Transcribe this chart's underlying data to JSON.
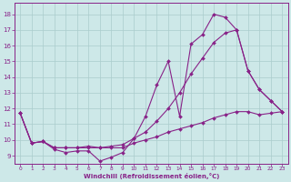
{
  "xlabel": "Windchill (Refroidissement éolien,°C)",
  "background_color": "#cde8e8",
  "line_color": "#882288",
  "grid_color": "#aacccc",
  "xlim_min": -0.5,
  "xlim_max": 23.5,
  "ylim_min": 8.5,
  "ylim_max": 18.7,
  "xticks": [
    0,
    1,
    2,
    3,
    4,
    5,
    6,
    7,
    8,
    9,
    10,
    11,
    12,
    13,
    14,
    15,
    16,
    17,
    18,
    19,
    20,
    21,
    22,
    23
  ],
  "yticks": [
    9,
    10,
    11,
    12,
    13,
    14,
    15,
    16,
    17,
    18
  ],
  "s1_x": [
    0,
    1,
    2,
    3,
    4,
    5,
    6,
    7,
    8,
    9,
    10,
    11,
    12,
    13,
    14,
    15,
    16,
    17,
    18,
    19,
    20,
    21,
    22,
    23
  ],
  "s1_y": [
    11.7,
    9.8,
    9.9,
    9.4,
    9.2,
    9.3,
    9.3,
    8.65,
    8.9,
    9.2,
    10.1,
    11.5,
    13.5,
    15.0,
    11.5,
    16.1,
    16.7,
    18.0,
    17.8,
    17.0,
    14.4,
    13.2,
    12.5,
    11.8
  ],
  "s2_x": [
    0,
    1,
    2,
    3,
    4,
    5,
    6,
    7,
    8,
    9,
    10,
    11,
    12,
    13,
    14,
    15,
    16,
    17,
    18,
    19,
    20,
    21,
    22,
    23
  ],
  "s2_y": [
    11.7,
    9.8,
    9.9,
    9.5,
    9.5,
    9.5,
    9.6,
    9.5,
    9.6,
    9.7,
    10.1,
    10.5,
    11.2,
    12.0,
    13.0,
    14.2,
    15.2,
    16.2,
    16.8,
    17.0,
    14.4,
    13.2,
    12.5,
    11.8
  ],
  "s3_x": [
    0,
    1,
    2,
    3,
    4,
    5,
    6,
    7,
    8,
    9,
    10,
    11,
    12,
    13,
    14,
    15,
    16,
    17,
    18,
    19,
    20,
    21,
    22,
    23
  ],
  "s3_y": [
    11.7,
    9.8,
    9.9,
    9.5,
    9.5,
    9.5,
    9.5,
    9.5,
    9.5,
    9.5,
    9.8,
    10.0,
    10.2,
    10.5,
    10.7,
    10.9,
    11.1,
    11.4,
    11.6,
    11.8,
    11.8,
    11.6,
    11.7,
    11.8
  ]
}
